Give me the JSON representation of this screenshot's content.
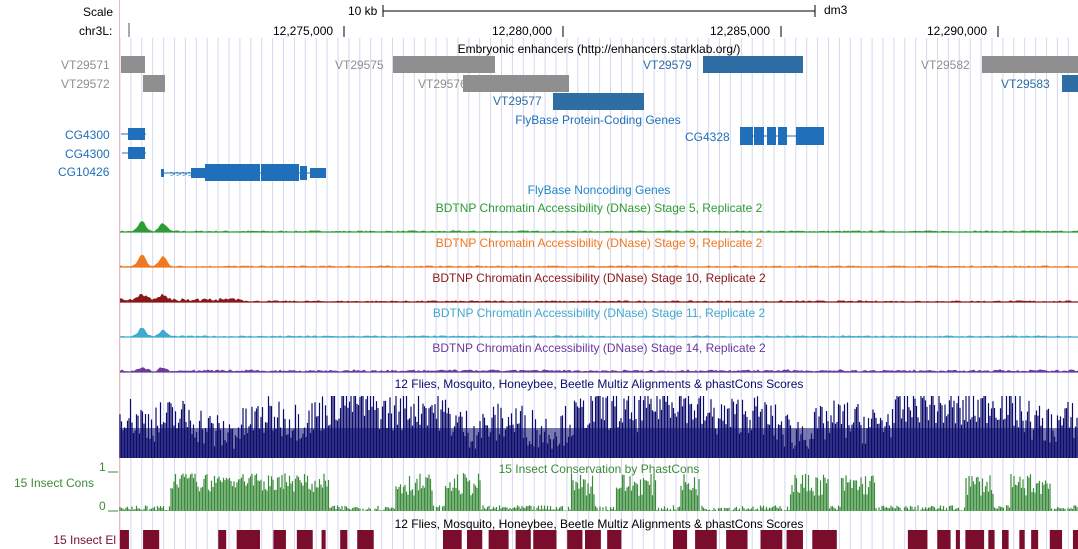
{
  "ruler": {
    "scale_label": "Scale",
    "scale_bar_label": "10 kb",
    "assembly": "dm3",
    "chrom_label": "chr3L:",
    "positions": [
      "12,275,000",
      "12,280,000",
      "12,285,000",
      "12,290,000"
    ]
  },
  "tracks": {
    "enhancers": {
      "title": "Embryonic enhancers (http://enhancers.starklab.org/)",
      "items": [
        {
          "name": "VT29571",
          "color": "#8f8f8f"
        },
        {
          "name": "VT29572",
          "color": "#8f8f8f"
        },
        {
          "name": "VT29575",
          "color": "#8f8f8f"
        },
        {
          "name": "VT29576",
          "color": "#8f8f8f"
        },
        {
          "name": "VT29577",
          "color": "#2e6ea4"
        },
        {
          "name": "VT29579",
          "color": "#2e6ea4"
        },
        {
          "name": "VT29582",
          "color": "#8f8f8f"
        },
        {
          "name": "VT29583",
          "color": "#2e6ea4"
        }
      ]
    },
    "protein_genes": {
      "title": "FlyBase Protein-Coding Genes",
      "genes": [
        "CG4300",
        "CG4300",
        "CG10426",
        "CG4328"
      ],
      "color": "#1f6fba"
    },
    "noncoding": {
      "title": "FlyBase Noncoding Genes",
      "color": "#1f86c8"
    },
    "dnase": [
      {
        "title": "BDTNP Chromatin Accessibility (DNase) Stage 5, Replicate 2",
        "color": "#2e9c34"
      },
      {
        "title": "BDTNP Chromatin Accessibility (DNase) Stage 9, Replicate 2",
        "color": "#f07820"
      },
      {
        "title": "BDTNP Chromatin Accessibility (DNase) Stage 10, Replicate 2",
        "color": "#8a1818"
      },
      {
        "title": "BDTNP Chromatin Accessibility (DNase) Stage 11, Replicate 2",
        "color": "#3fa9d0"
      },
      {
        "title": "BDTNP Chromatin Accessibility (DNase) Stage 14, Replicate 2",
        "color": "#6a3a9c"
      }
    ],
    "multiz": {
      "title": "12 Flies, Mosquito, Honeybee, Beetle Multiz Alignments & phastCons Scores",
      "color": "#0c0c6e"
    },
    "cons": {
      "side_label": "15 Insect Cons",
      "title": "15 Insect Conservation by PhastCons",
      "tick_top": "1",
      "tick_bottom": "0",
      "color": "#3a8c3a"
    },
    "elements": {
      "side_label": "15 Insect El",
      "title": "12 Flies, Mosquito, Honeybee, Beetle Multiz Alignments & phastCons Scores",
      "color": "#7a0c2c"
    }
  },
  "colors": {
    "grid": "#d6d6f0",
    "left_border": "#f4b6b6",
    "ruler": "#000000"
  }
}
